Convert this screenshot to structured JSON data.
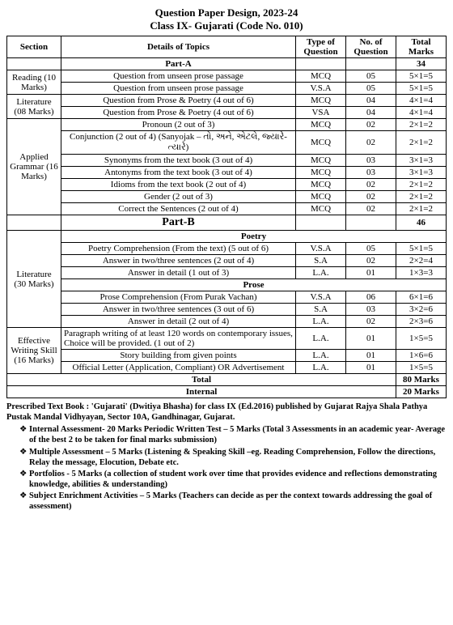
{
  "title_line1": "Question Paper Design, 2023-24",
  "title_line2": "Class IX- Gujarati (Code No. 010)",
  "headers": {
    "section": "Section",
    "details": "Details of Topics",
    "type": "Type of Question",
    "no": "No. of Question",
    "marks": "Total Marks"
  },
  "partA_label": "Part-A",
  "partA_total": "34",
  "sections_A": [
    {
      "section": "Reading (10 Marks)",
      "rows": [
        {
          "d": "Question from unseen prose passage",
          "t": "MCQ",
          "n": "05",
          "m": "5×1=5"
        },
        {
          "d": "Question from unseen prose passage",
          "t": "V.S.A",
          "n": "05",
          "m": "5×1=5"
        }
      ]
    },
    {
      "section": "Literature (08 Marks)",
      "rows": [
        {
          "d": "Question from Prose & Poetry (4 out of 6)",
          "t": "MCQ",
          "n": "04",
          "m": "4×1=4"
        },
        {
          "d": "Question from Prose & Poetry (4 out of 6)",
          "t": "VSA",
          "n": "04",
          "m": "4×1=4"
        }
      ]
    },
    {
      "section": "Applied Grammar (16 Marks)",
      "rows": [
        {
          "d": "Pronoun (2 out of 3)",
          "t": "MCQ",
          "n": "02",
          "m": "2×1=2"
        },
        {
          "d": "Conjunction (2 out of 4) (Sanyojak – તો, અને, એટલે, જ્યારે-ત્યારે)",
          "t": "MCQ",
          "n": "02",
          "m": "2×1=2"
        },
        {
          "d": "Synonyms from the text book (3 out of 4)",
          "t": "MCQ",
          "n": "03",
          "m": "3×1=3"
        },
        {
          "d": "Antonyms from the text book (3 out of 4)",
          "t": "MCQ",
          "n": "03",
          "m": "3×1=3"
        },
        {
          "d": "Idioms from the text book (2 out of 4)",
          "t": "MCQ",
          "n": "02",
          "m": "2×1=2"
        },
        {
          "d": "Gender (2 out of 3)",
          "t": "MCQ",
          "n": "02",
          "m": "2×1=2"
        },
        {
          "d": "Correct the Sentences (2 out of 4)",
          "t": "MCQ",
          "n": "02",
          "m": "2×1=2"
        }
      ]
    }
  ],
  "partB_label": "Part-B",
  "partB_total": "46",
  "litB_section": "Literature (30 Marks)",
  "poetry_label": "Poetry",
  "poetry_rows": [
    {
      "d": "Poetry Comprehension (From the text) (5 out of 6)",
      "t": "V.S.A",
      "n": "05",
      "m": "5×1=5"
    },
    {
      "d": "Answer in two/three sentences (2 out of 4)",
      "t": "S.A",
      "n": "02",
      "m": "2×2=4"
    },
    {
      "d": "Answer in detail (1 out of 3)",
      "t": "L.A.",
      "n": "01",
      "m": "1×3=3"
    }
  ],
  "prose_label": "Prose",
  "prose_rows": [
    {
      "d": "Prose Comprehension (From Purak Vachan)",
      "t": "V.S.A",
      "n": "06",
      "m": "6×1=6"
    },
    {
      "d": "Answer in two/three sentences (3 out of 6)",
      "t": "S.A",
      "n": "03",
      "m": "3×2=6"
    },
    {
      "d": "Answer in detail (2 out of 4)",
      "t": "L.A.",
      "n": "02",
      "m": "2×3=6"
    }
  ],
  "writing_section": "Effective Writing Skill (16 Marks)",
  "writing_rows": [
    {
      "d": "Paragraph writing of at least 120 words on contemporary issues, Choice will be provided. (1 out of 2)",
      "t": "L.A.",
      "n": "01",
      "m": "1×5=5"
    },
    {
      "d": "Story building from given points",
      "t": "L.A.",
      "n": "01",
      "m": "1×6=6"
    },
    {
      "d": "Official Letter (Application, Compliant) OR Advertisement",
      "t": "L.A.",
      "n": "01",
      "m": "1×5=5"
    }
  ],
  "total_label": "Total",
  "total_marks": "80 Marks",
  "internal_label": "Internal",
  "internal_marks": "20 Marks",
  "footer_book": "Prescribed Text Book : 'Gujarati' (Dwitiya Bhasha) for class IX (Ed.2016) published by Gujarat Rajya Shala Pathya Pustak Mandal Vidhyayan, Sector 10A, Gandhinagar, Gujarat.",
  "footer_items": [
    "Internal Assessment- 20 Marks Periodic Written Test – 5 Marks (Total 3 Assessments in an academic year- Average of the best 2 to be taken for final marks submission)",
    "Multiple Assessment – 5 Marks (Listening & Speaking Skill –eg. Reading Comprehension, Follow the directions, Relay the message, Elocution, Debate etc.",
    "Portfolios - 5 Marks (a collection of student work over time that provides evidence and reflections demonstrating knowledge, abilities & understanding)",
    "Subject Enrichment Activities – 5 Marks (Teachers can decide as per the context towards addressing the goal of assessment)"
  ]
}
